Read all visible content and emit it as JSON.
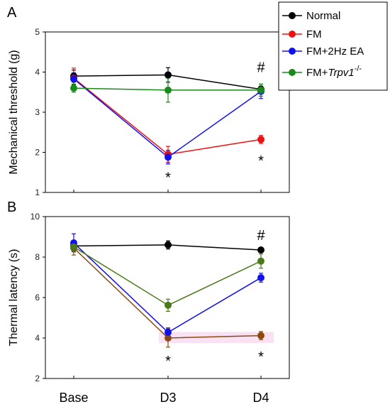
{
  "chart_data": [
    {
      "panel_label": "A",
      "type": "line",
      "categories": [
        "Base",
        "D3",
        "D4"
      ],
      "ylabel": "Mechanical threshold (g)",
      "ylim": [
        1,
        5
      ],
      "yticks": [
        1,
        2,
        3,
        4,
        5
      ],
      "grid": false,
      "series": [
        {
          "name": "Normal",
          "color": "#000000",
          "values": [
            3.9,
            3.93,
            3.57
          ],
          "errors": [
            0.15,
            0.18,
            0.08
          ]
        },
        {
          "name": "FM",
          "color": "#ee1111",
          "values": [
            3.85,
            1.95,
            2.32
          ],
          "errors": [
            0.25,
            0.2,
            0.1
          ]
        },
        {
          "name": "FM+2Hz EA",
          "color": "#1111ee",
          "values": [
            3.83,
            1.88,
            3.52
          ],
          "errors": [
            0.15,
            0.17,
            0.18
          ]
        },
        {
          "name": "FM+Trpv1-/-",
          "color": "#1a8a1a",
          "values": [
            3.6,
            3.55,
            3.55
          ],
          "errors": [
            0.1,
            0.3,
            0.15
          ]
        }
      ],
      "annotations": [
        {
          "text": "#",
          "category": "D4",
          "value": 4.12
        },
        {
          "text": "*",
          "category": "D3",
          "value": 1.38
        },
        {
          "text": "*",
          "category": "D4",
          "value": 1.8
        }
      ]
    },
    {
      "panel_label": "B",
      "type": "line",
      "categories": [
        "Base",
        "D3",
        "D4"
      ],
      "ylabel": "Thermal latency (s)",
      "ylim": [
        2,
        10
      ],
      "yticks": [
        2,
        4,
        6,
        8,
        10
      ],
      "grid": false,
      "series": [
        {
          "name": "Normal",
          "color": "#000000",
          "values": [
            8.55,
            8.6,
            8.35
          ],
          "errors": [
            0.25,
            0.2,
            0.12
          ]
        },
        {
          "name": "FM",
          "color": "#8b4a14",
          "values": [
            8.45,
            4.0,
            4.12
          ],
          "errors": [
            0.35,
            0.45,
            0.2
          ]
        },
        {
          "name": "FM+2Hz EA",
          "color": "#1111ee",
          "values": [
            8.7,
            4.28,
            6.98
          ],
          "errors": [
            0.45,
            0.22,
            0.22
          ]
        },
        {
          "name": "FM+Trpv1-/-",
          "color": "#4a7a1a",
          "values": [
            8.5,
            5.62,
            7.8
          ],
          "errors": [
            0.25,
            0.3,
            0.35
          ]
        }
      ],
      "annotations": [
        {
          "text": "#",
          "category": "D4",
          "value": 9.08
        },
        {
          "text": "*",
          "category": "D3",
          "value": 2.88
        },
        {
          "text": "*",
          "category": "D4",
          "value": 3.08
        }
      ]
    }
  ],
  "legend": {
    "entries": [
      {
        "label": "Normal",
        "color": "#000000"
      },
      {
        "label": "FM",
        "color": "#ee1111"
      },
      {
        "label": "FM+2Hz EA",
        "color": "#1111ee"
      },
      {
        "label_prefix": "FM+",
        "label_italic": "Trpv1",
        "label_super": "-/-",
        "color": "#1a8a1a"
      }
    ]
  }
}
